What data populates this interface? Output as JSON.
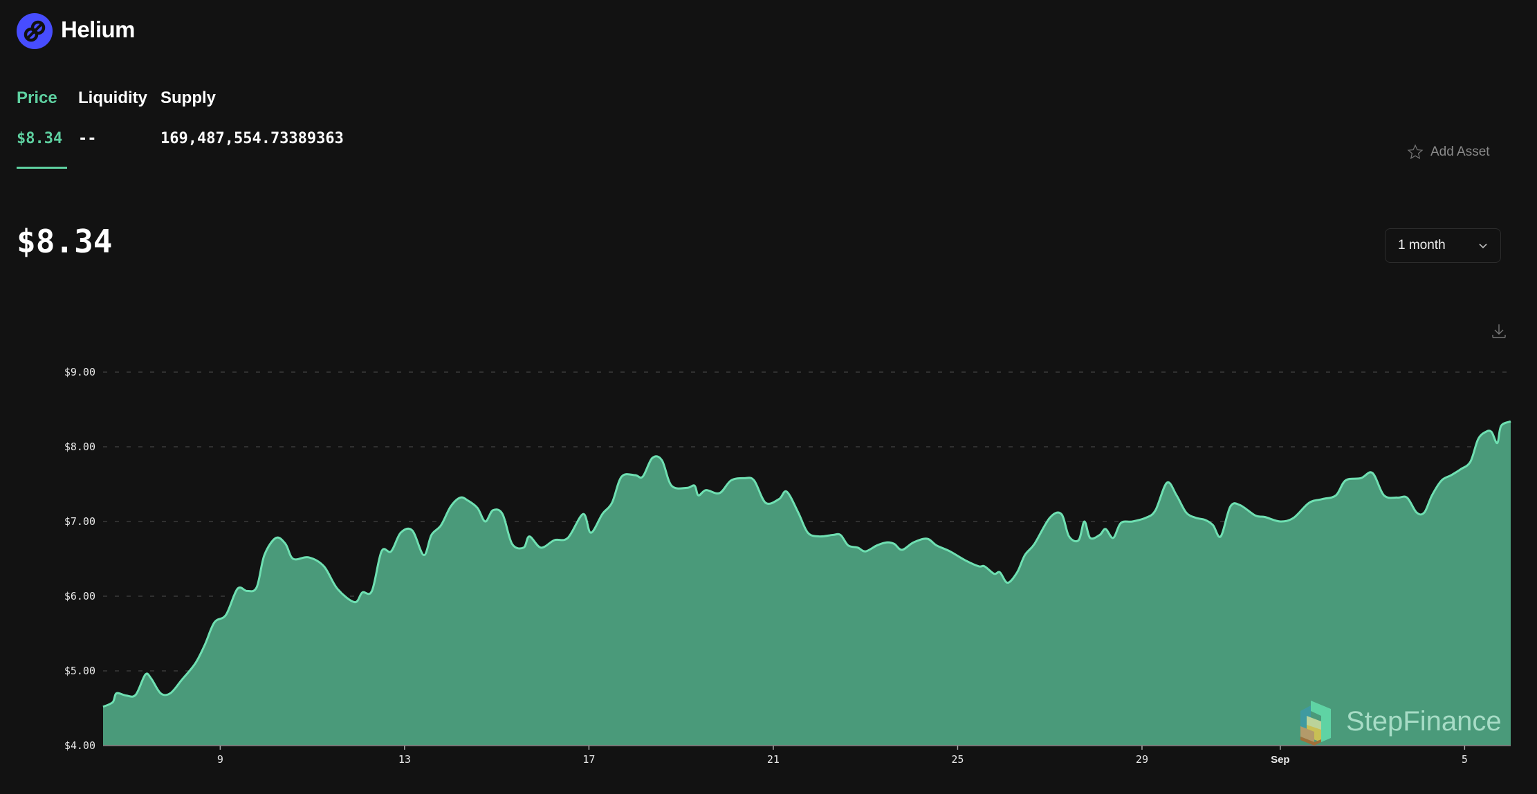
{
  "header": {
    "title": "Helium",
    "logo_icon": "helium-logo-icon",
    "brand_color": "#474dff"
  },
  "tabs": [
    {
      "label": "Price",
      "value": "$8.34",
      "active": true
    },
    {
      "label": "Liquidity",
      "value": "--"
    },
    {
      "label": "Supply",
      "value": "169,487,554.73389363"
    }
  ],
  "current_price": "$8.34",
  "add_asset": {
    "label": "Add Asset",
    "icon": "star-outline-icon"
  },
  "range_select": {
    "value": "1 month",
    "icon": "chevron-down-icon"
  },
  "download_icon": "download-icon",
  "watermark": "StepFinance",
  "colors": {
    "accent": "#5ed0a0",
    "area": "#4a9a7a",
    "line": "#6fe0b2",
    "background": "#121212"
  },
  "chart_data": {
    "type": "area",
    "ylim": [
      4,
      9
    ],
    "yticks": [
      "$4.00",
      "$5.00",
      "$6.00",
      "$7.00",
      "$8.00",
      "$9.00"
    ],
    "ytick_values": [
      4,
      5,
      6,
      7,
      8,
      9
    ],
    "xticks": [
      {
        "label": "9",
        "date": "Aug 9 00:00"
      },
      {
        "label": "13",
        "date": "Aug 13 00:00"
      },
      {
        "label": "17",
        "date": "Aug 17 00:00"
      },
      {
        "label": "21",
        "date": "Aug 21 00:00"
      },
      {
        "label": "25",
        "date": "Aug 25 00:00"
      },
      {
        "label": "29",
        "date": "Aug 29 00:00"
      },
      {
        "label": "Sep",
        "date": "Sep 1 00:00",
        "bold": true
      },
      {
        "label": "5",
        "date": "Sep 5 00:00"
      }
    ],
    "grid": "horizontal dashed",
    "points": [
      [
        "Aug 6 11:00",
        4.52
      ],
      [
        "Aug 6 16:00",
        4.58
      ],
      [
        "Aug 6 18:00",
        4.7
      ],
      [
        "Aug 6 23:00",
        4.67
      ],
      [
        "Aug 7 04:00",
        4.68
      ],
      [
        "Aug 7 09:00",
        4.95
      ],
      [
        "Aug 7 12:00",
        4.9
      ],
      [
        "Aug 7 17:00",
        4.7
      ],
      [
        "Aug 7 22:00",
        4.7
      ],
      [
        "Aug 8 04:00",
        4.88
      ],
      [
        "Aug 8 11:00",
        5.1
      ],
      [
        "Aug 8 16:00",
        5.35
      ],
      [
        "Aug 8 21:00",
        5.65
      ],
      [
        "Aug 9 03:00",
        5.75
      ],
      [
        "Aug 9 09:00",
        6.1
      ],
      [
        "Aug 9 14:00",
        6.07
      ],
      [
        "Aug 9 19:00",
        6.12
      ],
      [
        "Aug 9 23:00",
        6.55
      ],
      [
        "Aug 10 05:00",
        6.78
      ],
      [
        "Aug 10 10:00",
        6.7
      ],
      [
        "Aug 10 14:00",
        6.5
      ],
      [
        "Aug 10 22:00",
        6.52
      ],
      [
        "Aug 11 06:00",
        6.4
      ],
      [
        "Aug 11 13:00",
        6.1
      ],
      [
        "Aug 11 22:00",
        5.92
      ],
      [
        "Aug 12 02:00",
        6.05
      ],
      [
        "Aug 12 07:00",
        6.07
      ],
      [
        "Aug 12 12:00",
        6.6
      ],
      [
        "Aug 12 17:00",
        6.6
      ],
      [
        "Aug 12 22:00",
        6.85
      ],
      [
        "Aug 13 04:00",
        6.88
      ],
      [
        "Aug 13 10:00",
        6.55
      ],
      [
        "Aug 13 14:00",
        6.82
      ],
      [
        "Aug 13 19:00",
        6.95
      ],
      [
        "Aug 14 00:00",
        7.2
      ],
      [
        "Aug 14 05:00",
        7.32
      ],
      [
        "Aug 14 09:00",
        7.28
      ],
      [
        "Aug 14 14:00",
        7.18
      ],
      [
        "Aug 14 18:00",
        7.0
      ],
      [
        "Aug 14 22:00",
        7.15
      ],
      [
        "Aug 15 03:00",
        7.1
      ],
      [
        "Aug 15 08:00",
        6.7
      ],
      [
        "Aug 15 14:00",
        6.65
      ],
      [
        "Aug 15 17:00",
        6.8
      ],
      [
        "Aug 15 23:00",
        6.65
      ],
      [
        "Aug 16 06:00",
        6.75
      ],
      [
        "Aug 16 13:00",
        6.78
      ],
      [
        "Aug 16 21:00",
        7.1
      ],
      [
        "Aug 17 01:00",
        6.85
      ],
      [
        "Aug 17 07:00",
        7.1
      ],
      [
        "Aug 17 12:00",
        7.25
      ],
      [
        "Aug 17 17:00",
        7.6
      ],
      [
        "Aug 18 00:00",
        7.62
      ],
      [
        "Aug 18 04:00",
        7.6
      ],
      [
        "Aug 18 09:00",
        7.85
      ],
      [
        "Aug 18 14:00",
        7.82
      ],
      [
        "Aug 18 19:00",
        7.48
      ],
      [
        "Aug 19 03:00",
        7.45
      ],
      [
        "Aug 19 07:00",
        7.48
      ],
      [
        "Aug 19 09:00",
        7.35
      ],
      [
        "Aug 19 13:00",
        7.42
      ],
      [
        "Aug 19 20:00",
        7.38
      ],
      [
        "Aug 20 02:00",
        7.55
      ],
      [
        "Aug 20 09:00",
        7.58
      ],
      [
        "Aug 20 14:00",
        7.55
      ],
      [
        "Aug 20 20:00",
        7.25
      ],
      [
        "Aug 21 03:00",
        7.3
      ],
      [
        "Aug 21 07:00",
        7.4
      ],
      [
        "Aug 21 13:00",
        7.12
      ],
      [
        "Aug 21 18:00",
        6.85
      ],
      [
        "Aug 22 00:00",
        6.8
      ],
      [
        "Aug 22 07:00",
        6.82
      ],
      [
        "Aug 22 11:00",
        6.82
      ],
      [
        "Aug 22 15:00",
        6.68
      ],
      [
        "Aug 22 20:00",
        6.65
      ],
      [
        "Aug 23 00:00",
        6.6
      ],
      [
        "Aug 23 06:00",
        6.68
      ],
      [
        "Aug 23 11:00",
        6.72
      ],
      [
        "Aug 23 15:00",
        6.7
      ],
      [
        "Aug 23 19:00",
        6.62
      ],
      [
        "Aug 24 01:00",
        6.72
      ],
      [
        "Aug 24 08:00",
        6.77
      ],
      [
        "Aug 24 13:00",
        6.68
      ],
      [
        "Aug 24 20:00",
        6.6
      ],
      [
        "Aug 25 04:00",
        6.48
      ],
      [
        "Aug 25 11:00",
        6.4
      ],
      [
        "Aug 25 14:00",
        6.4
      ],
      [
        "Aug 25 19:00",
        6.3
      ],
      [
        "Aug 25 22:00",
        6.32
      ],
      [
        "Aug 26 02:00",
        6.18
      ],
      [
        "Aug 26 07:00",
        6.32
      ],
      [
        "Aug 26 11:00",
        6.55
      ],
      [
        "Aug 26 16:00",
        6.7
      ],
      [
        "Aug 27 00:00",
        7.05
      ],
      [
        "Aug 27 06:00",
        7.1
      ],
      [
        "Aug 27 10:00",
        6.8
      ],
      [
        "Aug 27 15:00",
        6.75
      ],
      [
        "Aug 27 18:00",
        7.0
      ],
      [
        "Aug 27 21:00",
        6.78
      ],
      [
        "Aug 28 02:00",
        6.82
      ],
      [
        "Aug 28 05:00",
        6.9
      ],
      [
        "Aug 28 09:00",
        6.78
      ],
      [
        "Aug 28 13:00",
        6.98
      ],
      [
        "Aug 28 19:00",
        7.0
      ],
      [
        "Aug 29 02:00",
        7.05
      ],
      [
        "Aug 29 07:00",
        7.15
      ],
      [
        "Aug 29 13:00",
        7.52
      ],
      [
        "Aug 29 18:00",
        7.35
      ],
      [
        "Aug 29 23:00",
        7.12
      ],
      [
        "Aug 30 04:00",
        7.05
      ],
      [
        "Aug 30 09:00",
        7.02
      ],
      [
        "Aug 30 13:00",
        6.95
      ],
      [
        "Aug 30 17:00",
        6.8
      ],
      [
        "Aug 30 22:00",
        7.2
      ],
      [
        "Aug 31 03:00",
        7.22
      ],
      [
        "Aug 31 11:00",
        7.08
      ],
      [
        "Aug 31 16:00",
        7.06
      ],
      [
        "Sep 1 00:00",
        7.0
      ],
      [
        "Sep 1 07:00",
        7.05
      ],
      [
        "Sep 1 15:00",
        7.25
      ],
      [
        "Sep 1 22:00",
        7.3
      ],
      [
        "Sep 2 05:00",
        7.35
      ],
      [
        "Sep 2 10:00",
        7.55
      ],
      [
        "Sep 2 18:00",
        7.58
      ],
      [
        "Sep 3 00:00",
        7.65
      ],
      [
        "Sep 3 06:00",
        7.35
      ],
      [
        "Sep 3 13:00",
        7.32
      ],
      [
        "Sep 3 18:00",
        7.32
      ],
      [
        "Sep 3 23:00",
        7.12
      ],
      [
        "Sep 4 03:00",
        7.12
      ],
      [
        "Sep 4 07:00",
        7.35
      ],
      [
        "Sep 4 12:00",
        7.55
      ],
      [
        "Sep 4 17:00",
        7.62
      ],
      [
        "Sep 4 22:00",
        7.7
      ],
      [
        "Sep 5 03:00",
        7.8
      ],
      [
        "Sep 5 07:00",
        8.1
      ],
      [
        "Sep 5 11:00",
        8.2
      ],
      [
        "Sep 5 14:00",
        8.2
      ],
      [
        "Sep 5 17:00",
        8.05
      ],
      [
        "Sep 5 19:00",
        8.28
      ],
      [
        "Sep 6 00:00",
        8.34
      ]
    ]
  }
}
